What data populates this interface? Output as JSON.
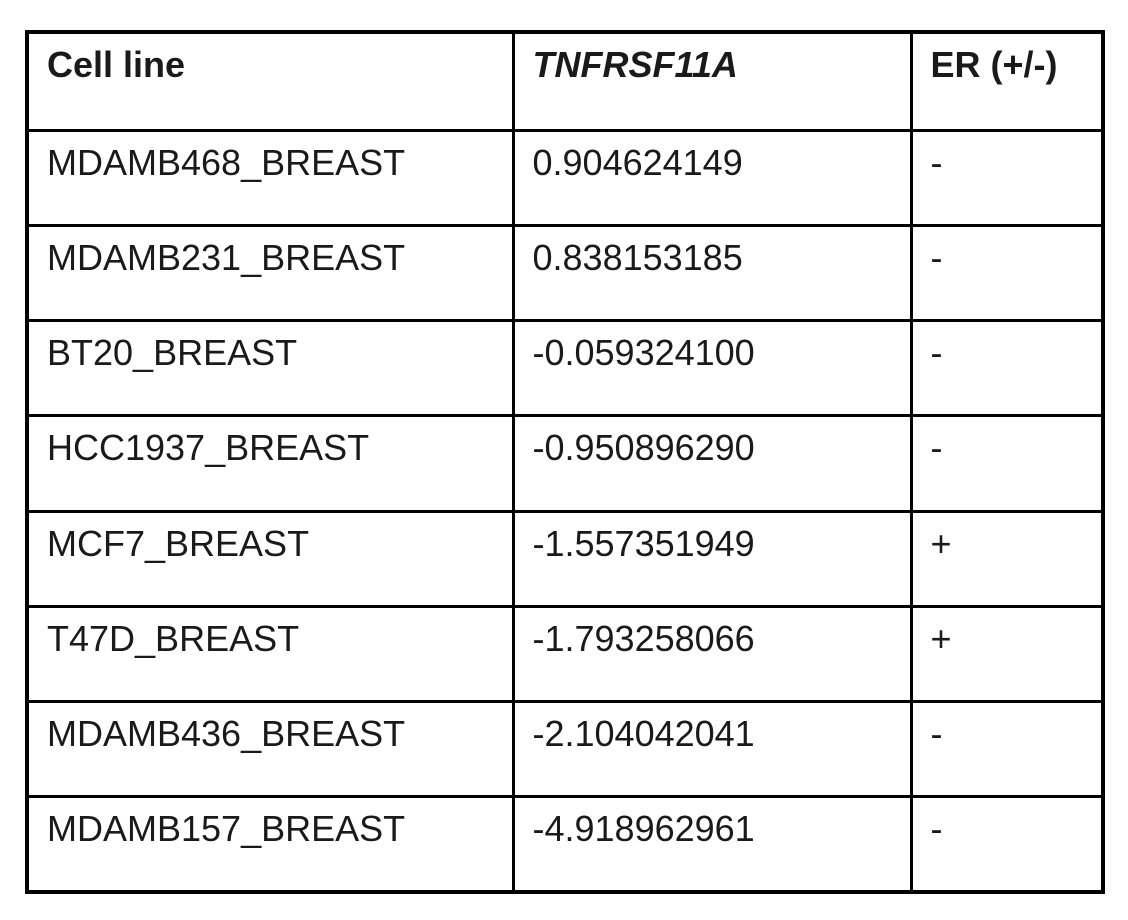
{
  "table": {
    "columns": [
      {
        "label": "Cell line"
      },
      {
        "label": "TNFRSF11A"
      },
      {
        "label": "ER (+/-)"
      }
    ],
    "rows": [
      {
        "cell_line": "MDAMB468_BREAST",
        "tnfrsf11a": "0.904624149",
        "er": "-"
      },
      {
        "cell_line": "MDAMB231_BREAST",
        "tnfrsf11a": "0.838153185",
        "er": "-"
      },
      {
        "cell_line": "BT20_BREAST",
        "tnfrsf11a": "-0.059324100",
        "er": "-"
      },
      {
        "cell_line": "HCC1937_BREAST",
        "tnfrsf11a": "-0.950896290",
        "er": "-"
      },
      {
        "cell_line": "MCF7_BREAST",
        "tnfrsf11a": "-1.557351949",
        "er": "+"
      },
      {
        "cell_line": "T47D_BREAST",
        "tnfrsf11a": "-1.793258066",
        "er": "+"
      },
      {
        "cell_line": "MDAMB436_BREAST",
        "tnfrsf11a": "-2.104042041",
        "er": "-"
      },
      {
        "cell_line": "MDAMB157_BREAST",
        "tnfrsf11a": "-4.918962961",
        "er": "-"
      }
    ]
  },
  "chart_data": {
    "type": "table",
    "columns": [
      "Cell line",
      "TNFRSF11A",
      "ER (+/-)"
    ],
    "rows": [
      [
        "MDAMB468_BREAST",
        0.904624149,
        "-"
      ],
      [
        "MDAMB231_BREAST",
        0.838153185,
        "-"
      ],
      [
        "BT20_BREAST",
        -0.0593241,
        "-"
      ],
      [
        "HCC1937_BREAST",
        -0.95089629,
        "-"
      ],
      [
        "MCF7_BREAST",
        -1.557351949,
        "+"
      ],
      [
        "T47D_BREAST",
        -1.793258066,
        "+"
      ],
      [
        "MDAMB436_BREAST",
        -2.104042041,
        "-"
      ],
      [
        "MDAMB157_BREAST",
        -4.918962961,
        "-"
      ]
    ]
  }
}
